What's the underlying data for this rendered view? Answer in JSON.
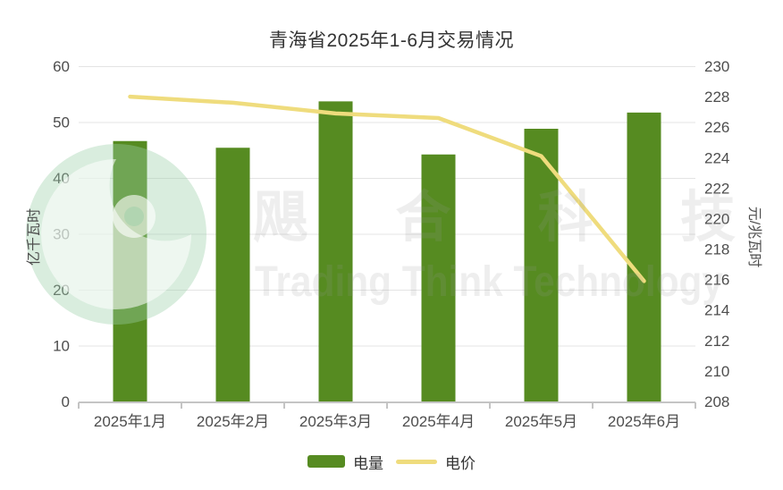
{
  "chart_data": {
    "type": "combo",
    "title": "青海省2025年1-6月交易情况",
    "categories": [
      "2025年1月",
      "2025年2月",
      "2025年3月",
      "2025年4月",
      "2025年5月",
      "2025年6月"
    ],
    "series": [
      {
        "name": "电量",
        "type": "bar",
        "axis": "left",
        "values": [
          46.6,
          45.4,
          53.7,
          44.2,
          48.8,
          51.7
        ]
      },
      {
        "name": "电价",
        "type": "line",
        "axis": "right",
        "values": [
          228.0,
          227.6,
          226.9,
          226.6,
          224.1,
          215.9
        ]
      }
    ],
    "left_axis": {
      "name": "亿千瓦时",
      "min": 0,
      "max": 60,
      "interval": 10,
      "ticks": [
        "0",
        "10",
        "20",
        "30",
        "40",
        "50",
        "60"
      ]
    },
    "right_axis": {
      "name": "元/兆瓦时",
      "min": 208,
      "max": 230,
      "interval": 2,
      "ticks": [
        "208",
        "210",
        "212",
        "214",
        "216",
        "218",
        "220",
        "222",
        "224",
        "226",
        "228",
        "230"
      ]
    },
    "grid": true,
    "legend_position": "bottom"
  },
  "legend": [
    {
      "label": "电量",
      "symbol": "bar"
    },
    {
      "label": "电价",
      "symbol": "line"
    }
  ],
  "watermark": {
    "cn": "飓合科技",
    "en": "Trading Think Technology",
    "logo": "hurricane-swirl-logo"
  },
  "colors": {
    "bar_green": "#568b21",
    "line_yellow": "#efdc7d",
    "title_text": "#333333",
    "axis_text": "#4d4d4d",
    "gridline": "#e4e4e4",
    "axis_line": "#c4c4c4",
    "watermark_gray": "#999999",
    "watermark_green": "#9ccfa8",
    "background": "#ffffff"
  }
}
